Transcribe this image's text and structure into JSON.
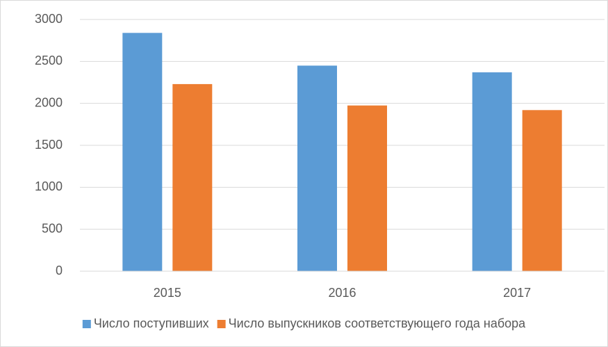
{
  "chart_data": {
    "type": "bar",
    "categories": [
      "2015",
      "2016",
      "2017"
    ],
    "series": [
      {
        "name": "Число поступивших",
        "color": "#5b9bd5",
        "values": [
          2840,
          2450,
          2370
        ]
      },
      {
        "name": "Число выпускников соответствующего года набора",
        "color": "#ed7d31",
        "values": [
          2230,
          1975,
          1920
        ]
      }
    ],
    "ylim": [
      0,
      3000
    ],
    "yticks": [
      0,
      500,
      1000,
      1500,
      2000,
      2500,
      3000
    ],
    "grid": true,
    "legend": "bottom"
  }
}
